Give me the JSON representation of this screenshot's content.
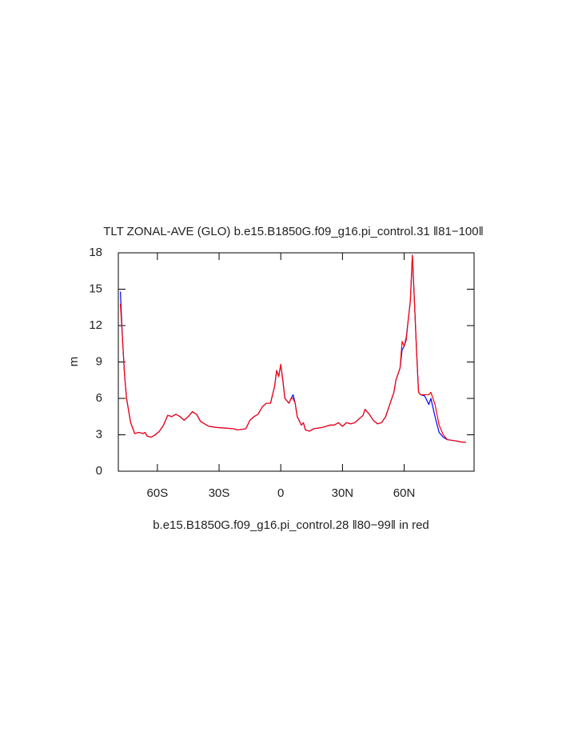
{
  "chart_data": {
    "type": "line",
    "title": "TLT ZONAL-AVE (GLO) b.e15.B1850G.f09_g16.pi_control.31 ‖81−100‖",
    "x_label": "b.e15.B1850G.f09_g16.pi_control.28 ‖80−99‖ in red",
    "y_label": "m",
    "x": [
      -78,
      -77,
      -76,
      -75,
      -73,
      -71,
      -69,
      -67,
      -66,
      -65,
      -63,
      -61,
      -59,
      -57,
      -55,
      -53,
      -51,
      -49,
      -47,
      -45,
      -43,
      -41,
      -39,
      -37,
      -35,
      -31,
      -27,
      -23,
      -21,
      -19,
      -17,
      -15,
      -13,
      -11,
      -9,
      -7,
      -5,
      -3,
      -2,
      -1,
      0,
      1,
      2,
      3,
      4,
      5,
      6,
      7,
      8,
      10,
      11,
      12,
      14,
      16,
      20,
      24,
      26,
      28,
      30,
      32,
      34,
      36,
      38,
      40,
      41,
      43,
      45,
      47,
      49,
      51,
      53,
      55,
      56,
      58,
      59,
      60,
      61,
      62,
      63,
      64,
      65,
      66,
      67,
      68,
      70,
      72,
      73,
      75,
      77,
      79,
      81,
      85,
      88,
      90
    ],
    "series": [
      {
        "color": "#0000ff",
        "values": [
          14.8,
          11,
          8,
          6,
          4,
          3.1,
          3.2,
          3.1,
          3.2,
          2.9,
          2.8,
          3.0,
          3.3,
          3.8,
          4.6,
          4.5,
          4.7,
          4.5,
          4.2,
          4.5,
          4.9,
          4.7,
          4.1,
          3.9,
          3.7,
          3.6,
          3.55,
          3.5,
          3.4,
          3.45,
          3.5,
          4.2,
          4.5,
          4.7,
          5.3,
          5.6,
          5.6,
          7.0,
          8.3,
          7.8,
          8.8,
          7.5,
          6.0,
          5.8,
          5.6,
          6.0,
          6.3,
          5.6,
          4.5,
          3.8,
          4.0,
          3.4,
          3.3,
          3.5,
          3.6,
          3.8,
          3.8,
          4.0,
          3.7,
          4.0,
          3.9,
          4.0,
          4.3,
          4.6,
          5.1,
          4.7,
          4.2,
          3.9,
          4.0,
          4.5,
          5.5,
          6.5,
          7.5,
          8.5,
          10,
          10.3,
          11,
          12.5,
          14,
          17.8,
          14,
          10,
          6.5,
          6.3,
          6.2,
          5.5,
          6.0,
          4.5,
          3.2,
          2.8,
          2.6,
          2.5,
          2.4,
          2.4
        ]
      },
      {
        "color": "#ff0000",
        "values": [
          13.8,
          11,
          8,
          6,
          4,
          3.1,
          3.2,
          3.1,
          3.2,
          2.9,
          2.8,
          3.0,
          3.3,
          3.8,
          4.6,
          4.5,
          4.7,
          4.5,
          4.2,
          4.5,
          4.9,
          4.7,
          4.1,
          3.9,
          3.7,
          3.6,
          3.55,
          3.5,
          3.4,
          3.45,
          3.5,
          4.2,
          4.5,
          4.7,
          5.3,
          5.6,
          5.6,
          7.0,
          8.3,
          7.8,
          8.8,
          7.5,
          6.0,
          5.8,
          5.6,
          6.0,
          6.0,
          5.6,
          4.5,
          3.8,
          4.0,
          3.4,
          3.3,
          3.5,
          3.6,
          3.8,
          3.8,
          4.0,
          3.7,
          4.0,
          3.9,
          4.0,
          4.3,
          4.6,
          5.1,
          4.7,
          4.2,
          3.9,
          4.0,
          4.5,
          5.5,
          6.5,
          7.5,
          8.5,
          10.7,
          10.3,
          10.8,
          12.5,
          14,
          17.8,
          14,
          10,
          6.5,
          6.3,
          6.3,
          6.3,
          6.5,
          5.5,
          3.8,
          3.0,
          2.6,
          2.5,
          2.4,
          2.4
        ]
      }
    ],
    "xlim": [
      -79,
      94
    ],
    "xticks": [
      {
        "value": -60,
        "label": "60S"
      },
      {
        "value": -30,
        "label": "30S"
      },
      0,
      {
        "value": 30,
        "label": "30N"
      },
      {
        "value": 60,
        "label": "60N"
      }
    ],
    "ylim": [
      0,
      18
    ],
    "yticks": [
      0,
      3,
      6,
      9,
      12,
      15,
      18
    ]
  }
}
